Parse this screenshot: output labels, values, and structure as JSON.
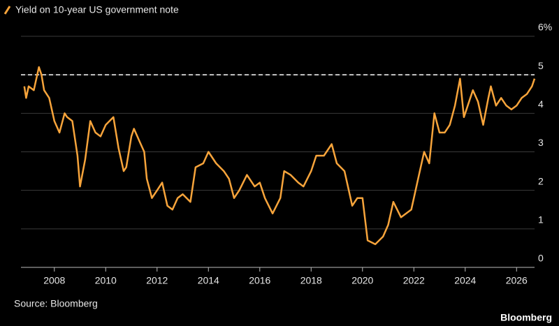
{
  "chart_data": {
    "type": "line",
    "source": "Source: Bloomberg",
    "brand": "Bloomberg",
    "x": [
      2006.83,
      2006.9,
      2007.0,
      2007.2,
      2007.4,
      2007.5,
      2007.6,
      2007.8,
      2008.0,
      2008.2,
      2008.4,
      2008.5,
      2008.7,
      2008.9,
      2009.0,
      2009.2,
      2009.4,
      2009.6,
      2009.8,
      2010.0,
      2010.3,
      2010.5,
      2010.7,
      2010.8,
      2011.0,
      2011.1,
      2011.3,
      2011.5,
      2011.6,
      2011.8,
      2012.0,
      2012.2,
      2012.4,
      2012.6,
      2012.8,
      2013.0,
      2013.3,
      2013.5,
      2013.8,
      2014.0,
      2014.3,
      2014.6,
      2014.8,
      2015.0,
      2015.2,
      2015.5,
      2015.8,
      2016.0,
      2016.2,
      2016.5,
      2016.8,
      2016.95,
      2017.2,
      2017.5,
      2017.7,
      2018.0,
      2018.2,
      2018.5,
      2018.8,
      2019.0,
      2019.3,
      2019.6,
      2019.8,
      2020.0,
      2020.2,
      2020.5,
      2020.8,
      2021.0,
      2021.2,
      2021.5,
      2021.9,
      2022.0,
      2022.2,
      2022.4,
      2022.6,
      2022.8,
      2023.0,
      2023.2,
      2023.4,
      2023.6,
      2023.8,
      2023.95,
      2024.1,
      2024.3,
      2024.5,
      2024.7,
      2024.9,
      2025.0,
      2025.2,
      2025.4,
      2025.6,
      2025.8,
      2026.0,
      2026.2,
      2026.4,
      2026.6,
      2026.7
    ],
    "series": [
      {
        "name": "Yield on 10-year US government note",
        "color": "#f7a43b",
        "values": [
          4.7,
          4.4,
          4.7,
          4.6,
          5.2,
          5.0,
          4.6,
          4.4,
          3.8,
          3.5,
          4.0,
          3.9,
          3.8,
          2.9,
          2.1,
          2.8,
          3.8,
          3.5,
          3.4,
          3.7,
          3.9,
          3.1,
          2.5,
          2.6,
          3.4,
          3.6,
          3.3,
          3.0,
          2.3,
          1.8,
          2.0,
          2.2,
          1.6,
          1.5,
          1.8,
          1.9,
          1.7,
          2.6,
          2.7,
          3.0,
          2.7,
          2.5,
          2.3,
          1.8,
          2.0,
          2.4,
          2.1,
          2.2,
          1.8,
          1.4,
          1.8,
          2.5,
          2.4,
          2.2,
          2.1,
          2.5,
          2.9,
          2.9,
          3.2,
          2.7,
          2.5,
          1.6,
          1.8,
          1.8,
          0.7,
          0.6,
          0.8,
          1.1,
          1.7,
          1.3,
          1.5,
          1.8,
          2.4,
          3.0,
          2.7,
          4.0,
          3.5,
          3.5,
          3.7,
          4.2,
          4.9,
          3.9,
          4.2,
          4.6,
          4.3,
          3.7,
          4.4,
          4.7,
          4.2,
          4.4,
          4.2,
          4.1,
          4.2,
          4.4,
          4.5,
          4.7,
          4.9
        ]
      }
    ],
    "reference_line": 5,
    "xlim": [
      2006.7,
      2026.7
    ],
    "xticks": [
      2008,
      2010,
      2012,
      2014,
      2016,
      2018,
      2020,
      2022,
      2024,
      2026
    ],
    "ylim": [
      0,
      6
    ],
    "yticks": [
      0,
      1,
      2,
      3,
      4,
      5,
      {
        "value": 6,
        "label": "6%"
      }
    ],
    "grid": true
  }
}
